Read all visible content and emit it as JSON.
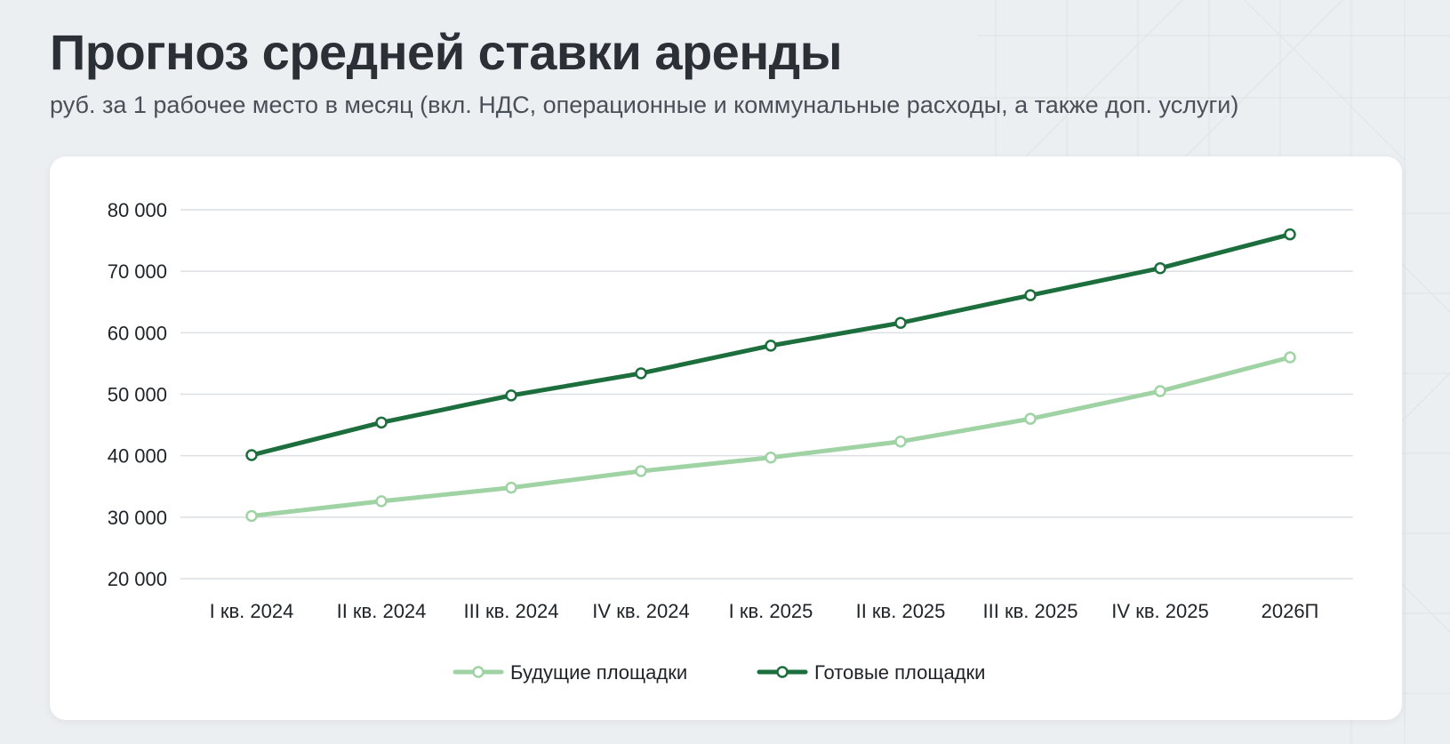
{
  "title": "Прогноз средней ставки аренды",
  "subtitle": "руб. за 1 рабочее место в месяц (вкл. НДС, операционные и коммунальные расходы, а также доп. услуги)",
  "colors": {
    "future": "#9fd3a4",
    "ready": "#1c6e3d",
    "grid": "#dcdfe3",
    "background": "#eceff2",
    "card": "#ffffff"
  },
  "chart_data": {
    "type": "line",
    "title": "Прогноз средней ставки аренды",
    "subtitle": "руб. за 1 рабочее место в месяц (вкл. НДС, операционные и коммунальные расходы, а также доп. услуги)",
    "categories": [
      "I кв. 2024",
      "II кв. 2024",
      "III кв. 2024",
      "IV кв. 2024",
      "I кв. 2025",
      "II кв. 2025",
      "III кв. 2025",
      "IV кв. 2025",
      "2026П"
    ],
    "series": [
      {
        "name": "Будущие площадки",
        "color": "#9fd3a4",
        "values": [
          30200,
          32600,
          34800,
          37500,
          39700,
          42300,
          46000,
          50500,
          56000
        ]
      },
      {
        "name": "Готовые площадки",
        "color": "#1c6e3d",
        "values": [
          40100,
          45400,
          49800,
          53400,
          57900,
          61600,
          66100,
          70500,
          76000
        ]
      }
    ],
    "yticks": [
      "20 000",
      "30 000",
      "40 000",
      "50 000",
      "60 000",
      "70 000",
      "80 000"
    ],
    "ytick_values": [
      20000,
      30000,
      40000,
      50000,
      60000,
      70000,
      80000
    ],
    "ylim": [
      20000,
      80000
    ],
    "xlabel": "",
    "ylabel": "",
    "grid": true,
    "legend_position": "bottom-center"
  }
}
